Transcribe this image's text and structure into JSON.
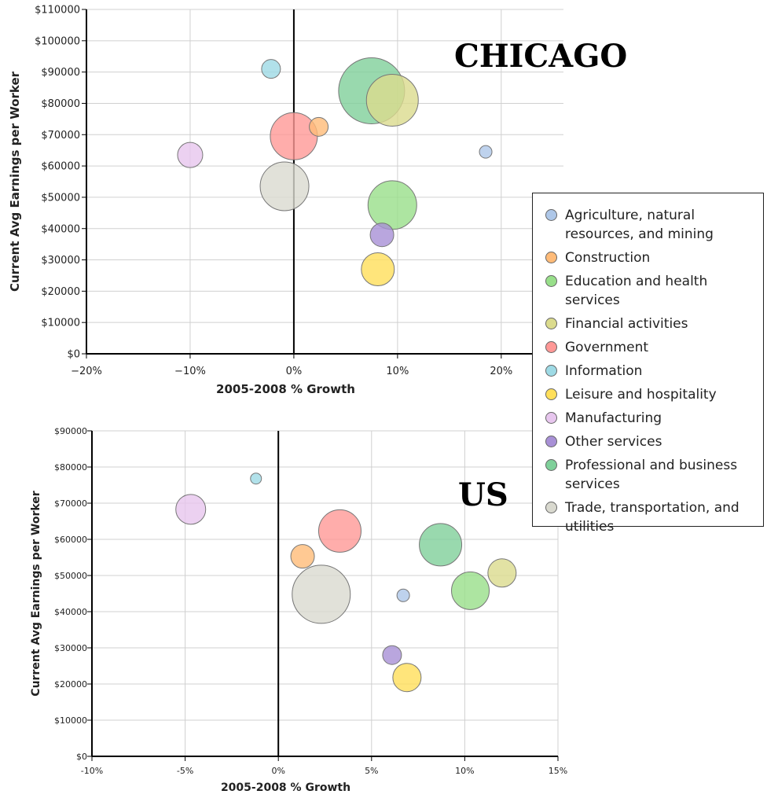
{
  "chart_data": [
    {
      "type": "scatter",
      "title": "CHICAGO",
      "xlabel": "2005-2008 % Growth",
      "ylabel": "Current Avg Earnings per Worker",
      "xlim": [
        -20,
        26
      ],
      "ylim": [
        0,
        110000
      ],
      "x_ticks": [
        -20,
        -10,
        0,
        10,
        20
      ],
      "x_tick_labels": [
        "−20%",
        "−10%",
        "0%",
        "10%",
        "20%"
      ],
      "y_ticks": [
        0,
        10000,
        20000,
        30000,
        40000,
        50000,
        60000,
        70000,
        80000,
        90000,
        100000,
        110000
      ],
      "y_tick_labels": [
        "$0",
        "$10000",
        "$20000",
        "$30000",
        "$40000",
        "$50000",
        "$60000",
        "$70000",
        "$80000",
        "$90000",
        "$100000",
        "$110000"
      ],
      "grid": true,
      "legend_placement": "right",
      "points": [
        {
          "series": "Agriculture, natural resources, and mining",
          "x": 18.5,
          "y": 64500,
          "size": 8
        },
        {
          "series": "Construction",
          "x": 2.4,
          "y": 72500,
          "size": 12
        },
        {
          "series": "Education and health services",
          "x": 9.5,
          "y": 47500,
          "size": 31
        },
        {
          "series": "Financial activities",
          "x": 9.5,
          "y": 81000,
          "size": 33
        },
        {
          "series": "Government",
          "x": 0,
          "y": 69500,
          "size": 30
        },
        {
          "series": "Information",
          "x": -2.2,
          "y": 91000,
          "size": 12
        },
        {
          "series": "Leisure and hospitality",
          "x": 8.1,
          "y": 27000,
          "size": 21
        },
        {
          "series": "Manufacturing",
          "x": -10,
          "y": 63500,
          "size": 16
        },
        {
          "series": "Other services",
          "x": 8.5,
          "y": 38000,
          "size": 15
        },
        {
          "series": "Professional and business services",
          "x": 7.5,
          "y": 84000,
          "size": 42
        },
        {
          "series": "Trade, transportation, and utilities",
          "x": -0.9,
          "y": 53500,
          "size": 31
        }
      ]
    },
    {
      "type": "scatter",
      "title": "US",
      "xlabel": "2005-2008 % Growth",
      "ylabel": "Current Avg Earnings per Worker",
      "xlim": [
        -10,
        15
      ],
      "ylim": [
        0,
        90000
      ],
      "x_ticks": [
        -10,
        -5,
        0,
        5,
        10,
        15
      ],
      "x_tick_labels": [
        "-10%",
        "-5%",
        "0%",
        "5%",
        "10%",
        "15%"
      ],
      "y_ticks": [
        0,
        10000,
        20000,
        30000,
        40000,
        50000,
        60000,
        70000,
        80000,
        90000
      ],
      "y_tick_labels": [
        "$0",
        "$10000",
        "$20000",
        "$30000",
        "$40000",
        "$50000",
        "$60000",
        "$70000",
        "$80000",
        "$90000"
      ],
      "grid": true,
      "legend_placement": "right",
      "points": [
        {
          "series": "Agriculture, natural resources, and mining",
          "x": 6.7,
          "y": 44500,
          "size": 8
        },
        {
          "series": "Construction",
          "x": 1.3,
          "y": 55300,
          "size": 15
        },
        {
          "series": "Education and health services",
          "x": 10.3,
          "y": 45800,
          "size": 24
        },
        {
          "series": "Financial activities",
          "x": 12,
          "y": 50700,
          "size": 18
        },
        {
          "series": "Government",
          "x": 3.3,
          "y": 62300,
          "size": 27
        },
        {
          "series": "Information",
          "x": -1.2,
          "y": 76800,
          "size": 7
        },
        {
          "series": "Leisure and hospitality",
          "x": 6.9,
          "y": 21800,
          "size": 18
        },
        {
          "series": "Manufacturing",
          "x": -4.7,
          "y": 68300,
          "size": 19
        },
        {
          "series": "Other services",
          "x": 6.1,
          "y": 28000,
          "size": 12
        },
        {
          "series": "Professional and business services",
          "x": 8.7,
          "y": 58500,
          "size": 27
        },
        {
          "series": "Trade, transportation, and utilities",
          "x": 2.3,
          "y": 44800,
          "size": 37
        }
      ]
    }
  ],
  "legend": [
    {
      "label": "Agriculture, natural resources, and mining",
      "color": "#aec7e8"
    },
    {
      "label": "Construction",
      "color": "#ffbb78"
    },
    {
      "label": "Education and health services",
      "color": "#98df8a"
    },
    {
      "label": "Financial activities",
      "color": "#dbdb8d"
    },
    {
      "label": "Government",
      "color": "#ff9896"
    },
    {
      "label": "Information",
      "color": "#9edae5"
    },
    {
      "label": "Leisure and hospitality",
      "color": "#ffdf5a"
    },
    {
      "label": "Manufacturing",
      "color": "#e7c6ee"
    },
    {
      "label": "Other services",
      "color": "#a890d6"
    },
    {
      "label": "Professional and business services",
      "color": "#7fd09a"
    },
    {
      "label": "Trade, transportation, and utilities",
      "color": "#d9d9cf"
    }
  ]
}
